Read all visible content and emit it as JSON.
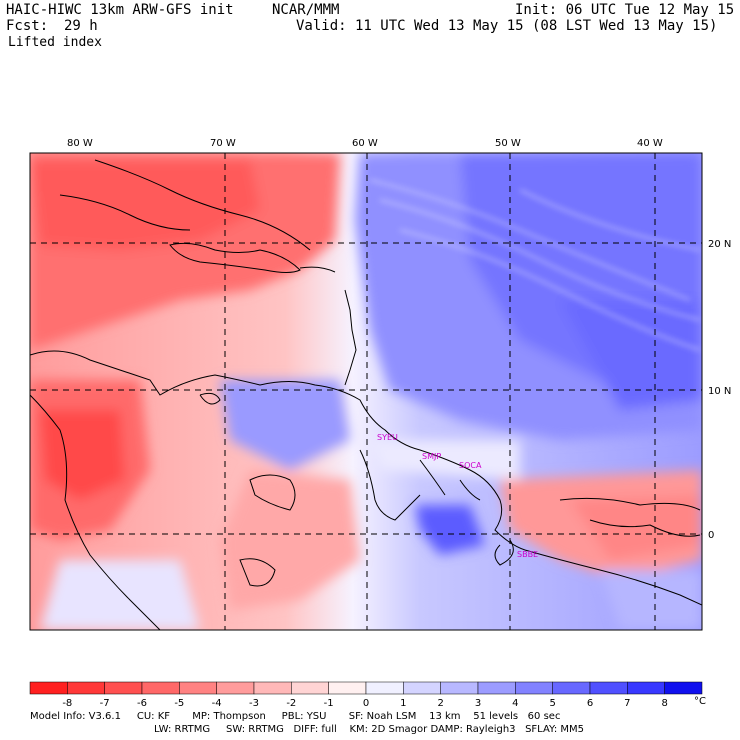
{
  "header": {
    "model": "HAIC-HIWC 13km ARW-GFS init",
    "org": "NCAR/MMM",
    "init": "Init: 06 UTC Tue 12 May 15",
    "fcst_label": "Fcst:",
    "fcst_value": "29 h",
    "valid": "Valid: 11 UTC Wed 13 May 15 (08 LST Wed 13 May 15)",
    "field": "Lifted index"
  },
  "map": {
    "lon_labels": [
      "80 W",
      "70 W",
      "60 W",
      "50 W",
      "40 W"
    ],
    "lat_labels": [
      "20 N",
      "10 N",
      "0"
    ],
    "stations": [
      "SYEU",
      "SMJP",
      "SOCA",
      "SBBE"
    ]
  },
  "colorbar": {
    "labels": [
      "-8",
      "-7",
      "-6",
      "-5",
      "-4",
      "-3",
      "-2",
      "-1",
      "0",
      "1",
      "2",
      "3",
      "4",
      "5",
      "6",
      "7",
      "8"
    ],
    "unit": "°C",
    "colors": [
      "#ff2020",
      "#ff3838",
      "#ff5050",
      "#ff6868",
      "#ff8282",
      "#ff9c9c",
      "#ffb8b8",
      "#ffd4d4",
      "#fff0f0",
      "#f0f0ff",
      "#d4d4ff",
      "#b8b8ff",
      "#9c9cff",
      "#8282ff",
      "#6868ff",
      "#5050ff",
      "#3838ff",
      "#1010ee"
    ]
  },
  "model_info": {
    "line1": "Model Info: V3.6.1     CU: KF       MP: Thompson     PBL: YSU       SF: Noah LSM    13 km    51 levels   60 sec",
    "line2": "LW: RRTMG     SW: RRTMG   DIFF: full    KM: 2D Smagor DAMP: Rayleigh3   SFLAY: MM5"
  }
}
